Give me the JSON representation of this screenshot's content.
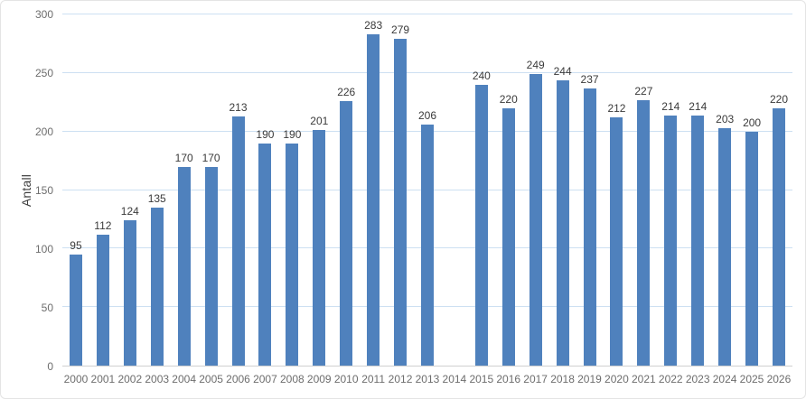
{
  "chart_data": {
    "type": "bar",
    "title": "",
    "xlabel": "",
    "ylabel": "Antall",
    "categories": [
      "2000",
      "2001",
      "2002",
      "2003",
      "2004",
      "2005",
      "2006",
      "2007",
      "2008",
      "2009",
      "2010",
      "2011",
      "2012",
      "2013",
      "2014",
      "2015",
      "2016",
      "2017",
      "2018",
      "2019",
      "2020",
      "2021",
      "2022",
      "2023",
      "2024",
      "2025",
      "2026"
    ],
    "values": [
      95,
      112,
      124,
      135,
      170,
      170,
      213,
      190,
      190,
      201,
      226,
      283,
      279,
      206,
      null,
      240,
      220,
      249,
      244,
      237,
      212,
      227,
      214,
      214,
      203,
      200,
      220
    ],
    "ylim": [
      0,
      300
    ],
    "yticks": [
      0,
      50,
      100,
      150,
      200,
      250,
      300
    ],
    "grid": true,
    "legend_position": "none",
    "data_labels": true,
    "colors": {
      "bar": "#4f81bd",
      "gridline": "#cde0f2",
      "axis_line": "#d0d0d0",
      "tick_label": "#6d6d6d",
      "value_label": "#3a3a3a"
    }
  }
}
